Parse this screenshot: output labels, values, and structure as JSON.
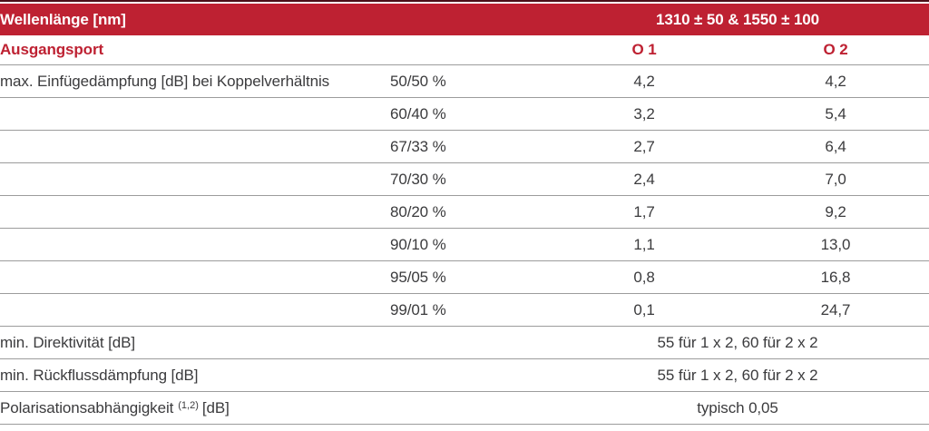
{
  "colors": {
    "header_bg": "#be2132",
    "accent_red": "#be2132",
    "top_rule": "#4c1019",
    "row_line": "#9c9c9c",
    "body_text": "#3b3b3d"
  },
  "table": {
    "bar": {
      "left": "Wellenlänge [nm]",
      "right": "1310 ± 50 & 1550 ± 100"
    },
    "sub": {
      "label": "Ausgangsport",
      "o1": "O 1",
      "o2": "O 2"
    },
    "loss": {
      "label": "max. Einfügedämpfung [dB] bei Koppelverhältnis",
      "rows": [
        {
          "ratio": "50/50 %",
          "o1": "4,2",
          "o2": "4,2"
        },
        {
          "ratio": "60/40 %",
          "o1": "3,2",
          "o2": "5,4"
        },
        {
          "ratio": "67/33 %",
          "o1": "2,7",
          "o2": "6,4"
        },
        {
          "ratio": "70/30 %",
          "o1": "2,4",
          "o2": "7,0"
        },
        {
          "ratio": "80/20 %",
          "o1": "1,7",
          "o2": "9,2"
        },
        {
          "ratio": "90/10 %",
          "o1": "1,1",
          "o2": "13,0"
        },
        {
          "ratio": "95/05 %",
          "o1": "0,8",
          "o2": "16,8"
        },
        {
          "ratio": "99/01 %",
          "o1": "0,1",
          "o2": "24,7"
        }
      ]
    },
    "footer": [
      {
        "label": "min. Direktivität [dB]",
        "value": "55 für 1 x 2, 60 für 2 x 2"
      },
      {
        "label": "min. Rückflussdämpfung [dB]",
        "value": "55 für 1 x 2, 60 für 2 x 2"
      },
      {
        "label": "Polarisationsabhängigkeit",
        "label_sup": "(1,2)",
        "label_suffix": "[dB]",
        "value": "typisch 0,05"
      }
    ]
  }
}
